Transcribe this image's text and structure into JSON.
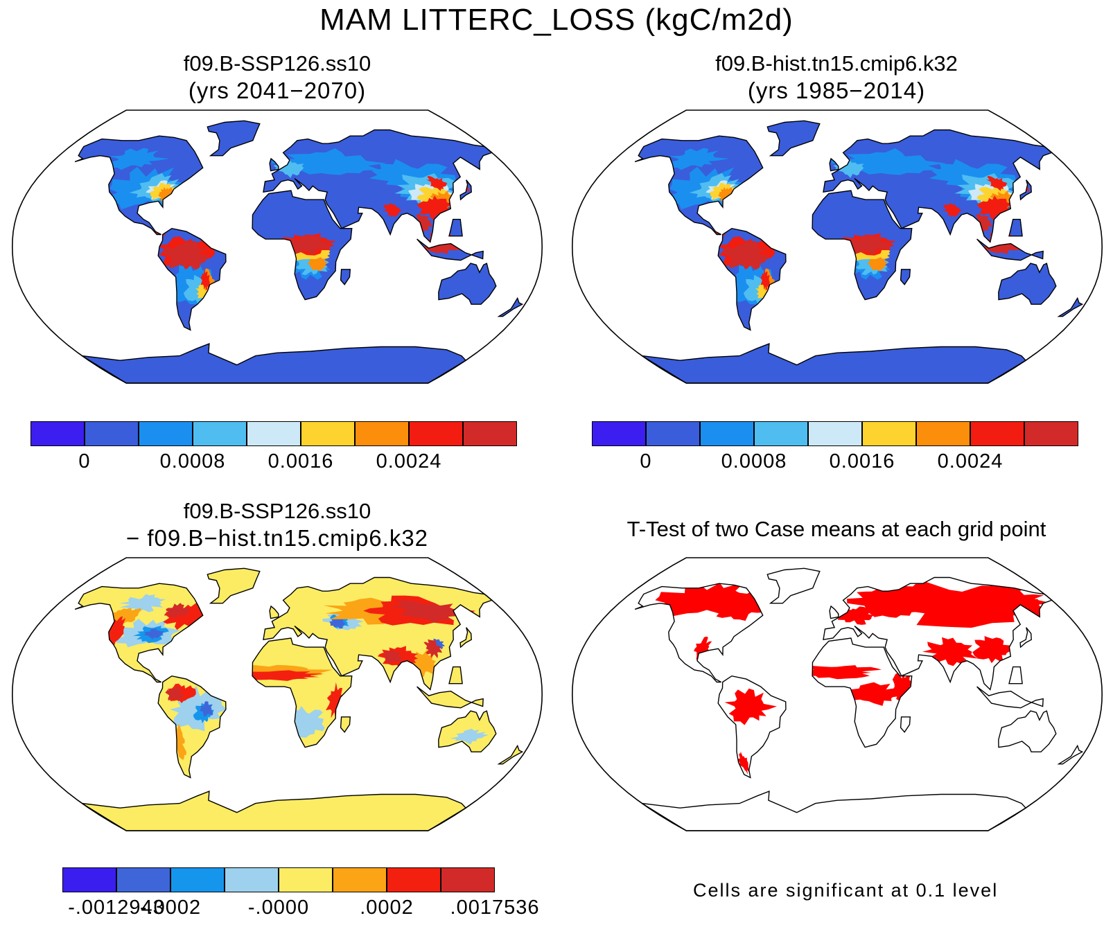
{
  "title": "MAM LITTERC_LOSS (kgC/m2d)",
  "panels": {
    "top_left": {
      "line1": "f09.B-SSP126.ss10",
      "line2": "(yrs 2041−2070)"
    },
    "top_right": {
      "line1": "f09.B-hist.tn15.cmip6.k32",
      "line2": "(yrs 1985−2014)"
    },
    "bottom_left": {
      "line1": "f09.B-SSP126.ss10",
      "line2": "− f09.B−hist.tn15.cmip6.k32"
    },
    "bottom_right": {
      "line1": "T-Test of two Case means at each grid point"
    }
  },
  "colorbars": {
    "abs": {
      "colors": [
        "#3c1ef0",
        "#3a5ddb",
        "#1b8fef",
        "#4fbdf0",
        "#cde9f7",
        "#fdd32f",
        "#fb8e0b",
        "#f21c10",
        "#d22a28"
      ],
      "labels": [
        "0",
        "0.0008",
        "0.0016",
        "0.0024"
      ],
      "label_positions": [
        1,
        3,
        5,
        7
      ]
    },
    "diff": {
      "colors": [
        "#3a1ef0",
        "#3f66d8",
        "#1596ec",
        "#9dd1ed",
        "#fbec63",
        "#fba416",
        "#f32010",
        "#d22a28"
      ],
      "labels": [
        "-.0012943",
        "-.0002",
        "-.0000",
        ".0002",
        ".0017536"
      ],
      "label_positions": [
        1,
        2,
        4,
        6,
        8
      ]
    }
  },
  "significance_note": "Cells are significant at 0.1 level"
}
